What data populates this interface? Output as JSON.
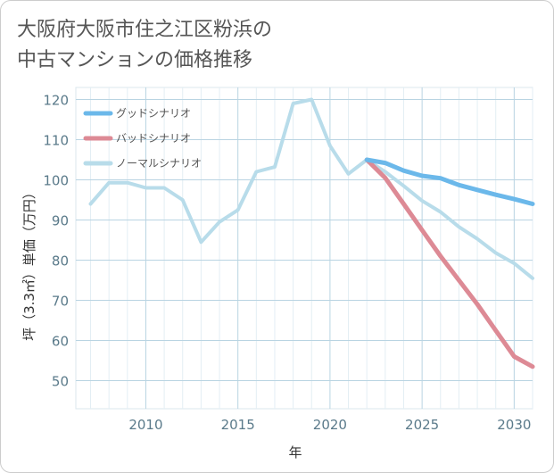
{
  "title_lines": [
    "大阪府大阪市住之江区粉浜の",
    "中古マンションの価格推移"
  ],
  "chart_data": {
    "type": "line",
    "title": "大阪府大阪市住之江区粉浜の中古マンションの価格推移",
    "xlabel": "年",
    "ylabel": "坪（3.3㎡）単価（万円）",
    "xlim": [
      2006.2,
      2031
    ],
    "ylim": [
      43,
      123
    ],
    "x_ticks": [
      2010,
      2015,
      2020,
      2025,
      2030
    ],
    "y_ticks": [
      50,
      60,
      70,
      80,
      90,
      100,
      110,
      120
    ],
    "legend_position": "top-left",
    "series": [
      {
        "name": "グッドシナリオ",
        "color": "#6bb8ea",
        "width": 5,
        "x": [
          2022,
          2023,
          2024,
          2025,
          2026,
          2027,
          2028,
          2029,
          2030,
          2031
        ],
        "y": [
          105,
          104.2,
          102.3,
          101,
          100.4,
          98.7,
          97.5,
          96.3,
          95.2,
          94
        ]
      },
      {
        "name": "バッドシナリオ",
        "color": "#dd8a95",
        "width": 5,
        "x": [
          2022,
          2023,
          2024,
          2025,
          2026,
          2027,
          2028,
          2029,
          2030,
          2031
        ],
        "y": [
          105,
          100.5,
          94,
          87.5,
          81,
          75,
          69,
          62.5,
          56,
          53.5
        ]
      },
      {
        "name": "ノーマルシナリオ",
        "color": "#b8dcea",
        "width": 4,
        "x": [
          2007,
          2008,
          2009,
          2010,
          2011,
          2012,
          2013,
          2014,
          2015,
          2016,
          2017,
          2018,
          2019,
          2020,
          2021,
          2022,
          2023,
          2024,
          2025,
          2026,
          2027,
          2028,
          2029,
          2030,
          2031
        ],
        "y": [
          94,
          99.3,
          99.3,
          98,
          98,
          95,
          84.5,
          89.5,
          92.5,
          102,
          103.2,
          119,
          120,
          108.5,
          101.5,
          105,
          102,
          98.5,
          94.8,
          92,
          88.3,
          85.3,
          81.8,
          79.2,
          75.5
        ]
      }
    ]
  }
}
